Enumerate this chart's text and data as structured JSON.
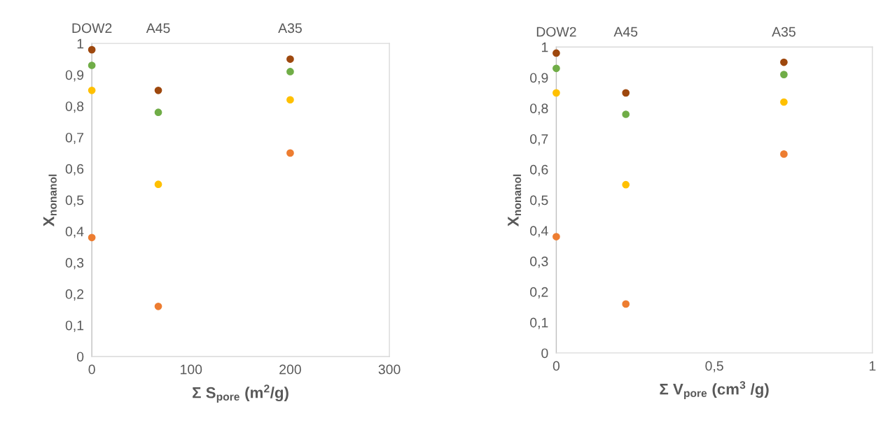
{
  "chart_data": [
    {
      "type": "scatter",
      "x": [
        0,
        67,
        200
      ],
      "xlabel": "Σ S$_{pore}$ (m$^{2}$/g)",
      "ylabel": "X$_{nonanol}$",
      "xlim": [
        0,
        300
      ],
      "xticks": [
        0,
        100,
        200,
        300
      ],
      "ylim": [
        0,
        1
      ],
      "yticks": [
        {
          "value": 0,
          "label": "0"
        },
        {
          "value": 0.1,
          "label": "0,1"
        },
        {
          "value": 0.2,
          "label": "0,2"
        },
        {
          "value": 0.3,
          "label": "0,3"
        },
        {
          "value": 0.4,
          "label": "0,4"
        },
        {
          "value": 0.5,
          "label": "0,5"
        },
        {
          "value": 0.6,
          "label": "0,6"
        },
        {
          "value": 0.7,
          "label": "0,7"
        },
        {
          "value": 0.8,
          "label": "0,8"
        },
        {
          "value": 0.9,
          "label": "0,9"
        },
        {
          "value": 1,
          "label": "1"
        }
      ],
      "series": [
        {
          "color": "#9e480e",
          "values": [
            0.98,
            0.85,
            0.95
          ]
        },
        {
          "color": "#70ad47",
          "values": [
            0.93,
            0.78,
            0.91
          ]
        },
        {
          "color": "#ffc000",
          "values": [
            0.85,
            0.55,
            0.82
          ]
        },
        {
          "color": "#ed7d31",
          "values": [
            0.38,
            0.16,
            0.65
          ]
        }
      ],
      "annotations": [
        "DOW2",
        "A45",
        "A35"
      ],
      "marker": "circle",
      "grid": false
    },
    {
      "type": "scatter",
      "x": [
        0,
        0.22,
        0.72
      ],
      "xlabel": "Σ V$_{pore}$ (cm$^{3}$ /g)",
      "ylabel": "X$_{nonanol}$",
      "xlim": [
        0,
        1
      ],
      "xticks": [
        {
          "value": 0,
          "label": "0"
        },
        {
          "value": 0.5,
          "label": "0,5"
        },
        {
          "value": 1,
          "label": "1"
        }
      ],
      "ylim": [
        0,
        1
      ],
      "yticks": [
        {
          "value": 0,
          "label": "0"
        },
        {
          "value": 0.1,
          "label": "0,1"
        },
        {
          "value": 0.2,
          "label": "0,2"
        },
        {
          "value": 0.3,
          "label": "0,3"
        },
        {
          "value": 0.4,
          "label": "0,4"
        },
        {
          "value": 0.5,
          "label": "0,5"
        },
        {
          "value": 0.6,
          "label": "0,6"
        },
        {
          "value": 0.7,
          "label": "0,7"
        },
        {
          "value": 0.8,
          "label": "0,8"
        },
        {
          "value": 0.9,
          "label": "0,9"
        },
        {
          "value": 1,
          "label": "1"
        }
      ],
      "series": [
        {
          "color": "#9e480e",
          "values": [
            0.98,
            0.85,
            0.95
          ]
        },
        {
          "color": "#70ad47",
          "values": [
            0.93,
            0.78,
            0.91
          ]
        },
        {
          "color": "#ffc000",
          "values": [
            0.85,
            0.55,
            0.82
          ]
        },
        {
          "color": "#ed7d31",
          "values": [
            0.38,
            0.16,
            0.65
          ]
        }
      ],
      "annotations": [
        "DOW2",
        "A45",
        "A35"
      ],
      "marker": "circle",
      "grid": false
    }
  ]
}
